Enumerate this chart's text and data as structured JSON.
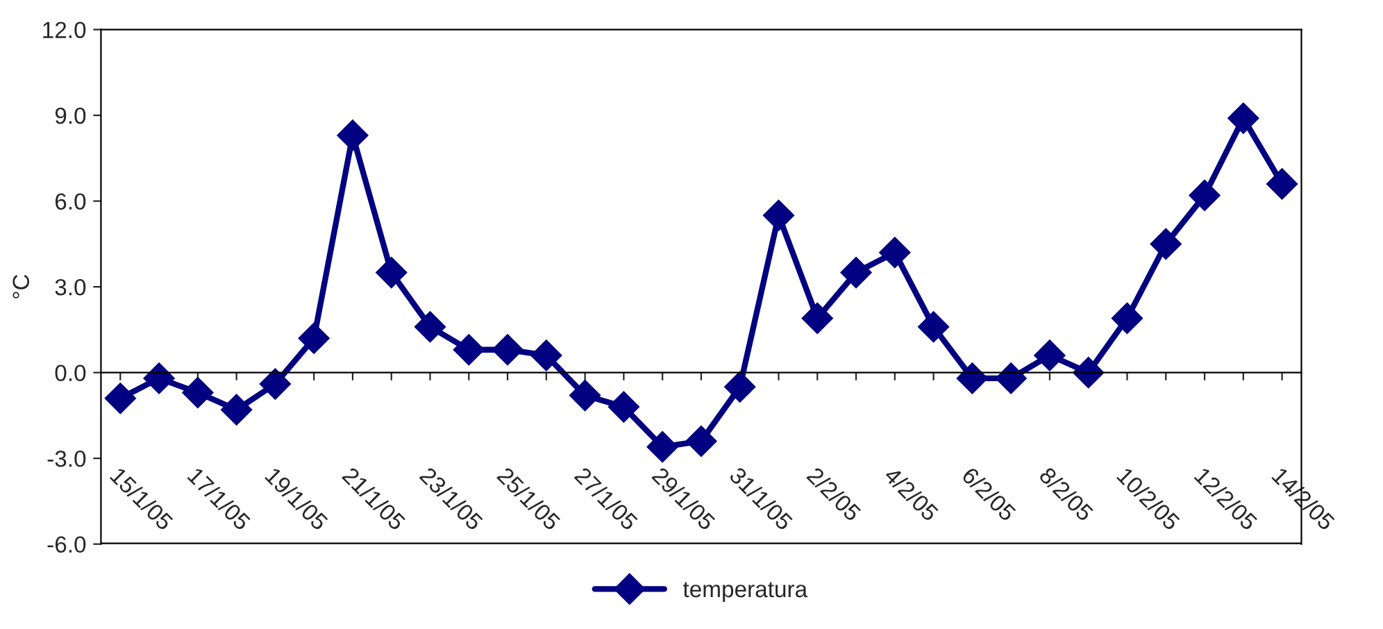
{
  "chart_data": {
    "type": "line",
    "ylabel": "°C",
    "categories": [
      "15/1/05",
      null,
      "17/1/05",
      null,
      "19/1/05",
      null,
      "21/1/05",
      null,
      "23/1/05",
      null,
      "25/1/05",
      null,
      "27/1/05",
      null,
      "29/1/05",
      null,
      "31/1/05",
      null,
      "2/2/05",
      null,
      "4/2/05",
      null,
      "6/2/05",
      null,
      "8/2/05",
      null,
      "10/2/05",
      null,
      "12/2/05",
      null,
      "14/2/05"
    ],
    "series": [
      {
        "name": "temperatura",
        "color": "#000080",
        "values": [
          -0.9,
          -0.2,
          -0.7,
          -1.3,
          -0.4,
          1.2,
          8.3,
          3.5,
          1.6,
          0.8,
          0.8,
          0.6,
          -0.8,
          -1.2,
          -2.6,
          -2.4,
          -0.5,
          5.5,
          1.9,
          3.5,
          4.2,
          1.6,
          -0.2,
          -0.2,
          0.6,
          0.0,
          1.9,
          4.5,
          6.2,
          8.9,
          6.6
        ]
      }
    ],
    "ylim": [
      -6,
      12
    ],
    "yticks": [
      {
        "value": -6,
        "label": "-6.0"
      },
      {
        "value": -3,
        "label": "-3.0"
      },
      {
        "value": 0,
        "label": "0.0"
      },
      {
        "value": 3,
        "label": "3.0"
      },
      {
        "value": 6,
        "label": "6.0"
      },
      {
        "value": 9,
        "label": "9.0"
      },
      {
        "value": 12,
        "label": "12.0"
      }
    ],
    "marker": "diamond",
    "line_style": "solid",
    "legend": "bottom"
  }
}
